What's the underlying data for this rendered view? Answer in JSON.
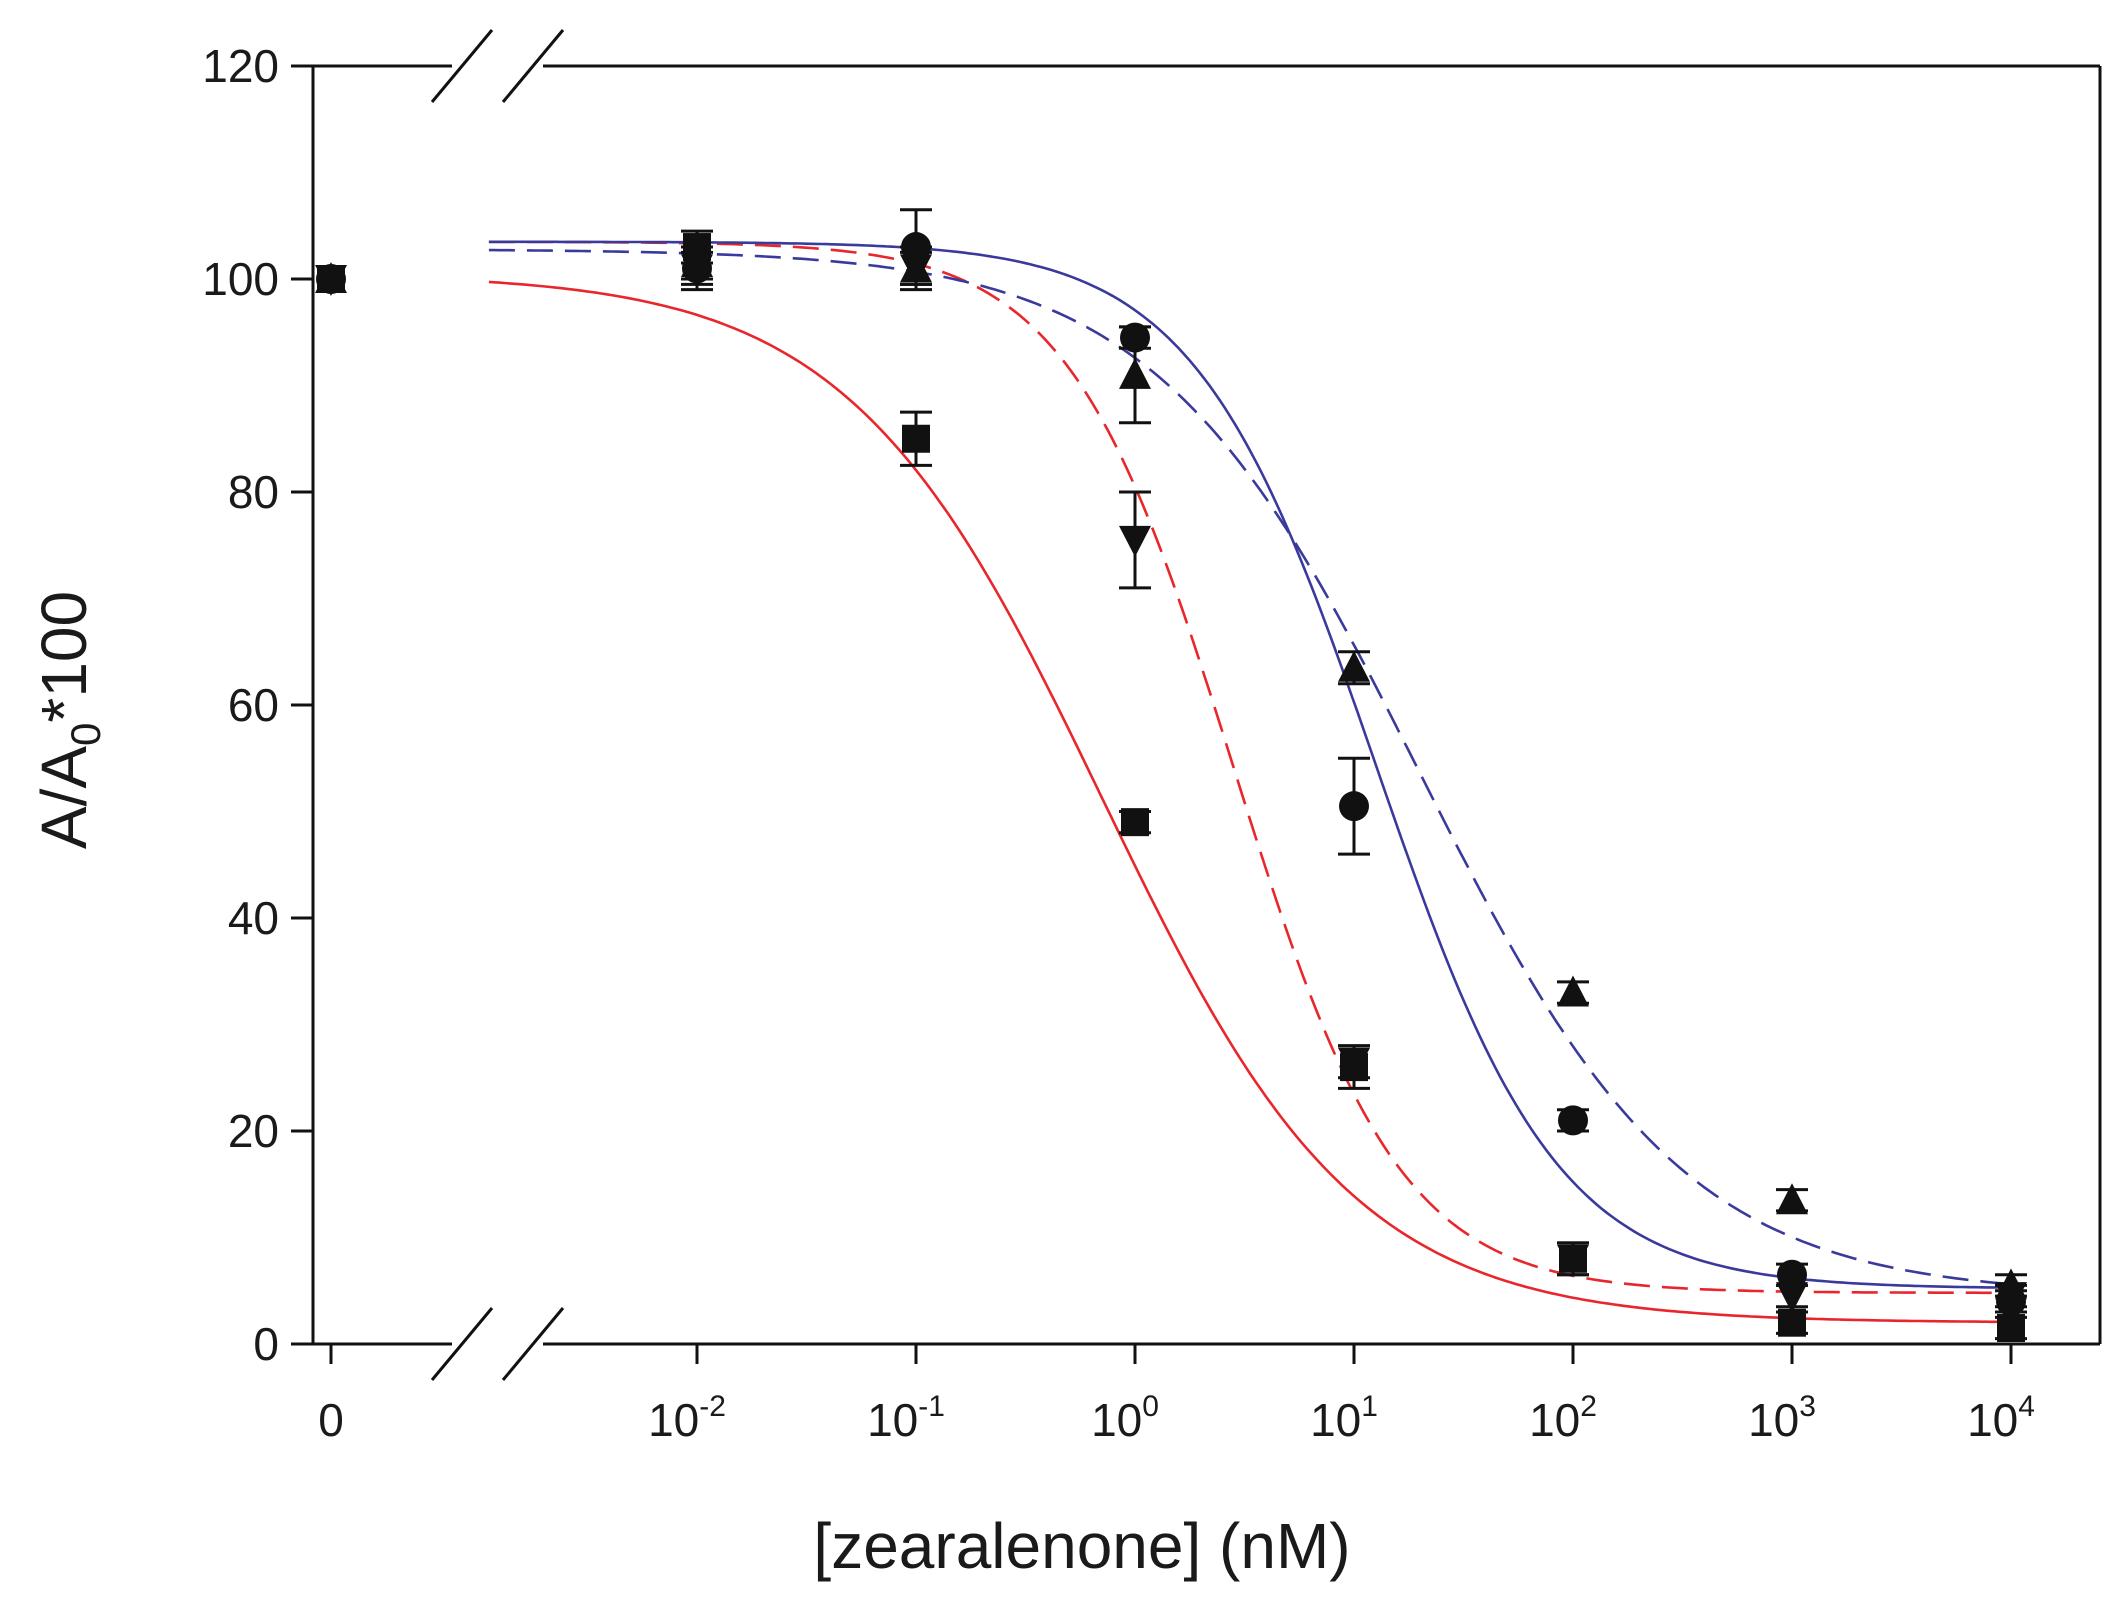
{
  "chart_data": {
    "type": "scatter",
    "title": "",
    "xlabel": "[zearalenone] (nM)",
    "ylabel": {
      "main": "A/A",
      "subscript": "0",
      "suffix": "*100"
    },
    "ylim": [
      0,
      120
    ],
    "y_ticks": [
      "0",
      "20",
      "40",
      "60",
      "80",
      "100",
      "120"
    ],
    "x_scale": "log with axis break",
    "x_ticks": [
      {
        "label": "0",
        "base": "",
        "exp": ""
      },
      {
        "label": "",
        "base": "10",
        "exp": "-2"
      },
      {
        "label": "",
        "base": "10",
        "exp": "-1"
      },
      {
        "label": "",
        "base": "10",
        "exp": "0"
      },
      {
        "label": "",
        "base": "10",
        "exp": "1"
      },
      {
        "label": "",
        "base": "10",
        "exp": "2"
      },
      {
        "label": "",
        "base": "10",
        "exp": "3"
      },
      {
        "label": "",
        "base": "10",
        "exp": "4"
      }
    ],
    "x_values_log10": [
      -2,
      -1,
      0,
      1,
      2,
      3,
      4
    ],
    "grid": false,
    "legend": "none",
    "series": [
      {
        "name": "squares",
        "marker": "square",
        "fit_color": "#e8262c",
        "fit_dash": "solid",
        "zero_value": 100,
        "points": [
          {
            "log10x": -2,
            "y": 103,
            "err": 1.5
          },
          {
            "log10x": -1,
            "y": 85,
            "err": 2.5
          },
          {
            "log10x": 0,
            "y": 49,
            "err": 1
          },
          {
            "log10x": 1,
            "y": 26,
            "err": 2
          },
          {
            "log10x": 2,
            "y": 8,
            "err": 1.5
          },
          {
            "log10x": 3,
            "y": 2,
            "err": 1
          },
          {
            "log10x": 4,
            "y": 1.5,
            "err": 1
          }
        ],
        "fit": {
          "top": 100.5,
          "bottom": 2,
          "logEC50": -0.15,
          "hill": 0.75
        }
      },
      {
        "name": "down-triangles",
        "marker": "triangle-down",
        "fit_color": "#e8262c",
        "fit_dash": "dashed",
        "zero_value": 100,
        "points": [
          {
            "log10x": -2,
            "y": 101,
            "err": 1.5
          },
          {
            "log10x": -1,
            "y": 101,
            "err": 1.5
          },
          {
            "log10x": 0,
            "y": 75.5,
            "err": 4.5
          },
          {
            "log10x": 1,
            "y": 26.5,
            "err": 1.5
          },
          {
            "log10x": 2,
            "y": 8,
            "err": 1.5
          },
          {
            "log10x": 3,
            "y": 4.5,
            "err": 1
          },
          {
            "log10x": 4,
            "y": 4.5,
            "err": 1
          }
        ],
        "fit": {
          "top": 103.5,
          "bottom": 4.8,
          "logEC50": 0.45,
          "hill": 1.15
        }
      },
      {
        "name": "circles",
        "marker": "circle",
        "fit_color": "#3a3a9c",
        "fit_dash": "solid",
        "zero_value": 100,
        "points": [
          {
            "log10x": -2,
            "y": 101,
            "err": 2
          },
          {
            "log10x": -1,
            "y": 103,
            "err": 3.5
          },
          {
            "log10x": 0,
            "y": 94.5,
            "err": 1
          },
          {
            "log10x": 1,
            "y": 50.5,
            "err": 4.5
          },
          {
            "log10x": 2,
            "y": 21,
            "err": 1
          },
          {
            "log10x": 3,
            "y": 6.5,
            "err": 1
          },
          {
            "log10x": 4,
            "y": 4,
            "err": 1
          }
        ],
        "fit": {
          "top": 103.5,
          "bottom": 5.2,
          "logEC50": 1.1,
          "hill": 1.05
        }
      },
      {
        "name": "up-triangles",
        "marker": "triangle-up",
        "fit_color": "#3a3a9c",
        "fit_dash": "dashed",
        "zero_value": 100,
        "points": [
          {
            "log10x": -2,
            "y": 101.5,
            "err": 1.5
          },
          {
            "log10x": -1,
            "y": 101,
            "err": 2
          },
          {
            "log10x": 0,
            "y": 91,
            "err": 4.5
          },
          {
            "log10x": 1,
            "y": 63.5,
            "err": 1.5
          },
          {
            "log10x": 2,
            "y": 33,
            "err": 1
          },
          {
            "log10x": 3,
            "y": 13.5,
            "err": 1
          },
          {
            "log10x": 4,
            "y": 5.5,
            "err": 1
          }
        ],
        "fit": {
          "top": 102.8,
          "bottom": 4.5,
          "logEC50": 1.3,
          "hill": 0.72
        }
      }
    ]
  }
}
